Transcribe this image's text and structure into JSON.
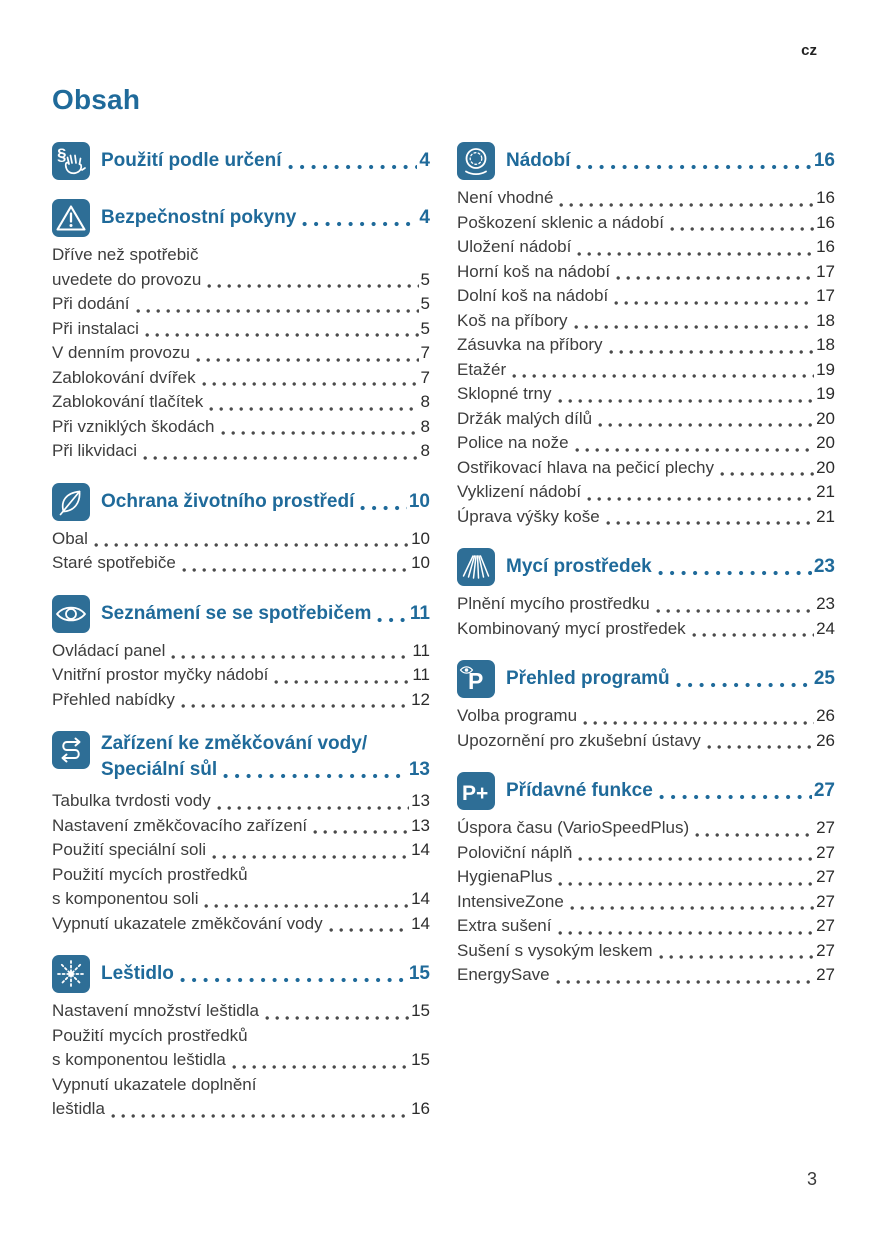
{
  "page": {
    "language_code": "cz",
    "title": "Obsah",
    "folio": "3",
    "accent_color": "#1f6a9a",
    "icon_color": "#2e6e96"
  },
  "columns": {
    "left": [
      {
        "icon": "paragraph-hand",
        "title_lines": [
          {
            "text": "Použití podle určení",
            "page": "4"
          }
        ],
        "entries": []
      },
      {
        "icon": "warning-triangle",
        "title_lines": [
          {
            "text": "Bezpečnostní pokyny",
            "page": "4"
          }
        ],
        "entries": [
          {
            "text": "Dříve než spotřebič",
            "page": null
          },
          {
            "text": "uvedete do provozu",
            "page": "5"
          },
          {
            "text": "Při dodání",
            "page": "5"
          },
          {
            "text": "Při instalaci",
            "page": "5"
          },
          {
            "text": "V denním provozu",
            "page": "7"
          },
          {
            "text": "Zablokování dvířek",
            "page": "7"
          },
          {
            "text": "Zablokování tlačítek",
            "page": "8"
          },
          {
            "text": "Při vzniklých škodách",
            "page": "8"
          },
          {
            "text": "Při likvidaci",
            "page": "8"
          }
        ]
      },
      {
        "icon": "leaf",
        "title_lines": [
          {
            "text": "Ochrana životního prostředí",
            "page": "10"
          }
        ],
        "entries": [
          {
            "text": "Obal",
            "page": "10"
          },
          {
            "text": "Staré spotřebiče",
            "page": "10"
          }
        ]
      },
      {
        "icon": "eye",
        "title_lines": [
          {
            "text": "Seznámení se se spotřebičem",
            "page": "11"
          }
        ],
        "entries": [
          {
            "text": "Ovládací panel",
            "page": "11"
          },
          {
            "text": "Vnitřní prostor myčky nádobí",
            "page": "11"
          },
          {
            "text": "Přehled nabídky",
            "page": "12"
          }
        ]
      },
      {
        "icon": "swap-arrows",
        "title_lines": [
          {
            "text": "Zařízení ke změkčování vody/",
            "page": null
          },
          {
            "text": "Speciální sůl",
            "page": "13"
          }
        ],
        "entries": [
          {
            "text": "Tabulka tvrdosti vody",
            "page": "13"
          },
          {
            "text": "Nastavení změkčovacího zařízení",
            "page": "13"
          },
          {
            "text": "Použití speciální soli",
            "page": "14"
          },
          {
            "text": "Použití mycích prostředků",
            "page": null
          },
          {
            "text": "s komponentou soli",
            "page": "14"
          },
          {
            "text": "Vypnutí ukazatele změkčování vody",
            "page": "14"
          }
        ]
      },
      {
        "icon": "sparkle",
        "title_lines": [
          {
            "text": "Leštidlo",
            "page": "15"
          }
        ],
        "entries": [
          {
            "text": "Nastavení množství leštidla",
            "page": "15"
          },
          {
            "text": "Použití mycích prostředků",
            "page": null
          },
          {
            "text": "s komponentou leštidla",
            "page": "15"
          },
          {
            "text": "Vypnutí ukazatele doplnění",
            "page": null
          },
          {
            "text": "leštidla",
            "page": "16"
          }
        ]
      }
    ],
    "right": [
      {
        "icon": "plate",
        "title_lines": [
          {
            "text": "Nádobí",
            "page": "16"
          }
        ],
        "entries": [
          {
            "text": "Není vhodné",
            "page": "16"
          },
          {
            "text": "Poškození sklenic a nádobí",
            "page": "16"
          },
          {
            "text": "Uložení nádobí",
            "page": "16"
          },
          {
            "text": "Horní koš na nádobí",
            "page": "17"
          },
          {
            "text": "Dolní koš na nádobí",
            "page": "17"
          },
          {
            "text": "Koš na příbory",
            "page": "18"
          },
          {
            "text": "Zásuvka na příbory",
            "page": "18"
          },
          {
            "text": "Etažér",
            "page": "19"
          },
          {
            "text": "Sklopné trny",
            "page": "19"
          },
          {
            "text": "Držák malých dílů",
            "page": "20"
          },
          {
            "text": "Police na nože",
            "page": "20"
          },
          {
            "text": "Ostřikovací hlava na pečicí plechy",
            "page": "20"
          },
          {
            "text": "Vyklizení nádobí",
            "page": "21"
          },
          {
            "text": "Úprava výšky koše",
            "page": "21"
          }
        ]
      },
      {
        "icon": "spray",
        "title_lines": [
          {
            "text": "Mycí prostředek",
            "page": "23"
          }
        ],
        "entries": [
          {
            "text": "Plnění mycího prostředku",
            "page": "23"
          },
          {
            "text": "Kombinovaný mycí prostředek",
            "page": "24"
          }
        ]
      },
      {
        "icon": "program-eye",
        "title_lines": [
          {
            "text": "Přehled programů",
            "page": "25"
          }
        ],
        "entries": [
          {
            "text": "Volba programu",
            "page": "26"
          },
          {
            "text": "Upozornění pro zkušební ústavy",
            "page": "26"
          }
        ]
      },
      {
        "icon": "program-plus",
        "title_lines": [
          {
            "text": "Přídavné funkce",
            "page": "27"
          }
        ],
        "entries": [
          {
            "text": "Úspora času (VarioSpeedPlus)",
            "page": "27"
          },
          {
            "text": "Poloviční náplň",
            "page": "27"
          },
          {
            "text": "HygienaPlus",
            "page": "27"
          },
          {
            "text": "IntensiveZone",
            "page": "27"
          },
          {
            "text": "Extra sušení",
            "page": "27"
          },
          {
            "text": "Sušení s vysokým leskem",
            "page": "27"
          },
          {
            "text": "EnergySave",
            "page": "27"
          }
        ]
      }
    ]
  }
}
